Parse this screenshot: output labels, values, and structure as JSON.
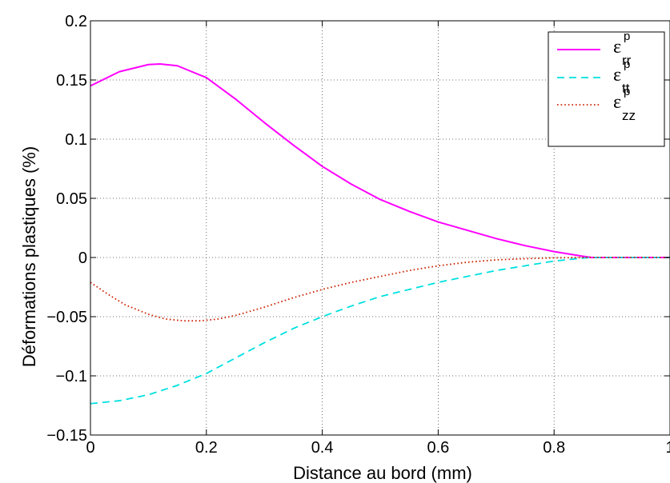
{
  "chart_data": {
    "type": "line",
    "title": "",
    "xlabel": "Distance au bord (mm)",
    "ylabel": "Déformations plastiques (%)",
    "xlim": [
      0,
      1
    ],
    "ylim": [
      -0.15,
      0.2
    ],
    "grid": true,
    "grid_style": "dotted",
    "legend_position": "top-right",
    "x_ticks": [
      0,
      0.2,
      0.4,
      0.6,
      0.8,
      1
    ],
    "x_tick_labels": [
      "0",
      "0.2",
      "0.4",
      "0.6",
      "0.8",
      "1"
    ],
    "y_ticks": [
      -0.15,
      -0.1,
      -0.05,
      0,
      0.05,
      0.1,
      0.15,
      0.2
    ],
    "y_tick_labels": [
      "−0.15",
      "−0.1",
      "−0.05",
      "0",
      "0.05",
      "0.1",
      "0.15",
      "0.2"
    ],
    "series": [
      {
        "name": "εrr p",
        "symbol": "ε",
        "superscript": "p",
        "subscript": "rr",
        "color": "#ff00ff",
        "line_style": "solid",
        "x": [
          0,
          0.05,
          0.1,
          0.12,
          0.15,
          0.2,
          0.25,
          0.3,
          0.35,
          0.4,
          0.45,
          0.5,
          0.55,
          0.6,
          0.65,
          0.7,
          0.75,
          0.8,
          0.85,
          0.865,
          0.9,
          0.95,
          1.0
        ],
        "y": [
          0.145,
          0.157,
          0.163,
          0.1635,
          0.162,
          0.152,
          0.134,
          0.114,
          0.095,
          0.077,
          0.062,
          0.049,
          0.039,
          0.03,
          0.023,
          0.016,
          0.01,
          0.005,
          0.001,
          0,
          0,
          0,
          0
        ]
      },
      {
        "name": "εtt p",
        "symbol": "ε",
        "superscript": "p",
        "subscript": "tt",
        "color": "#00e0e0",
        "line_style": "dashed",
        "x": [
          0,
          0.05,
          0.1,
          0.15,
          0.2,
          0.25,
          0.3,
          0.35,
          0.4,
          0.45,
          0.5,
          0.55,
          0.6,
          0.65,
          0.7,
          0.75,
          0.8,
          0.85,
          0.865,
          0.9,
          0.95,
          1.0
        ],
        "y": [
          -0.1235,
          -0.121,
          -0.116,
          -0.108,
          -0.098,
          -0.085,
          -0.072,
          -0.06,
          -0.05,
          -0.041,
          -0.033,
          -0.027,
          -0.021,
          -0.016,
          -0.011,
          -0.007,
          -0.003,
          -0.0005,
          0,
          0,
          0,
          0
        ]
      },
      {
        "name": "εzz p",
        "symbol": "ε",
        "superscript": "p",
        "subscript": "zz",
        "color": "#cc2200",
        "line_style": "dotted",
        "x": [
          0,
          0.03,
          0.06,
          0.1,
          0.13,
          0.16,
          0.19,
          0.22,
          0.25,
          0.3,
          0.35,
          0.4,
          0.45,
          0.5,
          0.55,
          0.6,
          0.65,
          0.7,
          0.75,
          0.8,
          0.85,
          0.9,
          0.95,
          1.0
        ],
        "y": [
          -0.021,
          -0.031,
          -0.04,
          -0.048,
          -0.052,
          -0.0535,
          -0.0535,
          -0.052,
          -0.049,
          -0.042,
          -0.034,
          -0.027,
          -0.021,
          -0.016,
          -0.011,
          -0.007,
          -0.004,
          -0.002,
          -0.001,
          -0.0003,
          0,
          0,
          0,
          0
        ]
      }
    ]
  }
}
